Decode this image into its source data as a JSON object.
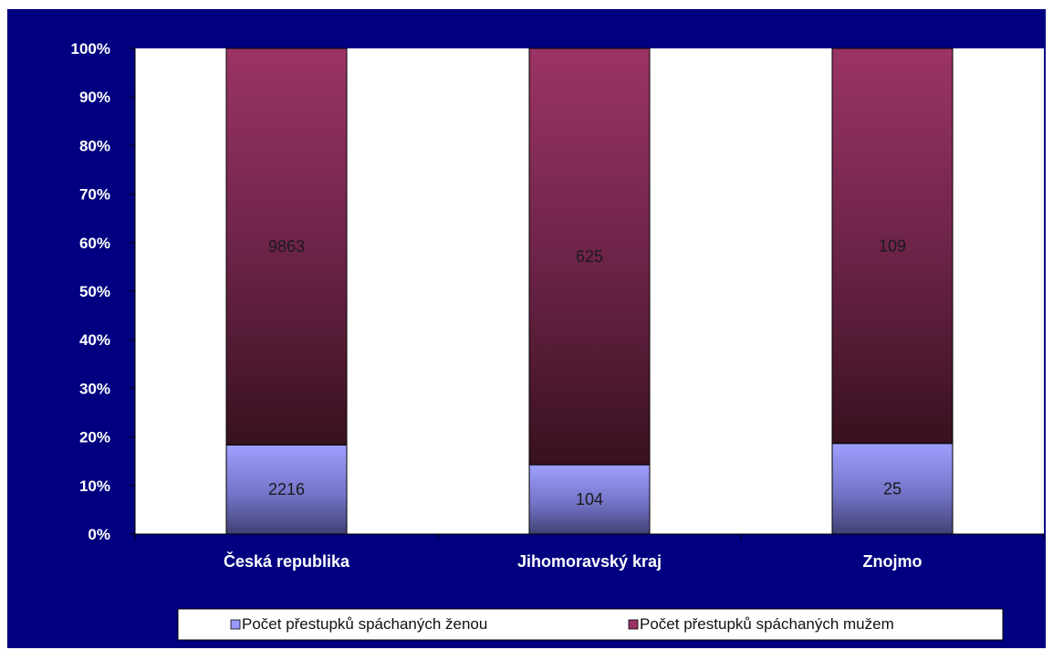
{
  "chart_data": {
    "type": "bar",
    "stacked": "percent",
    "categories": [
      "Česká republika",
      "Jihomoravský kraj",
      "Znojmo"
    ],
    "series": [
      {
        "name": "Počet přestupků spáchaných ženou",
        "values": [
          2216,
          104,
          25
        ],
        "color": "#9999FF"
      },
      {
        "name": "Počet přestupků spáchaných mužem",
        "values": [
          9863,
          625,
          109
        ],
        "color": "#993366"
      }
    ],
    "y_ticks": [
      "0%",
      "10%",
      "20%",
      "30%",
      "40%",
      "50%",
      "60%",
      "70%",
      "80%",
      "90%",
      "100%"
    ],
    "ylim": [
      0,
      100
    ],
    "grid": false,
    "legend_position": "bottom",
    "background": "#000080",
    "plot_background": "#FFFFFF"
  }
}
